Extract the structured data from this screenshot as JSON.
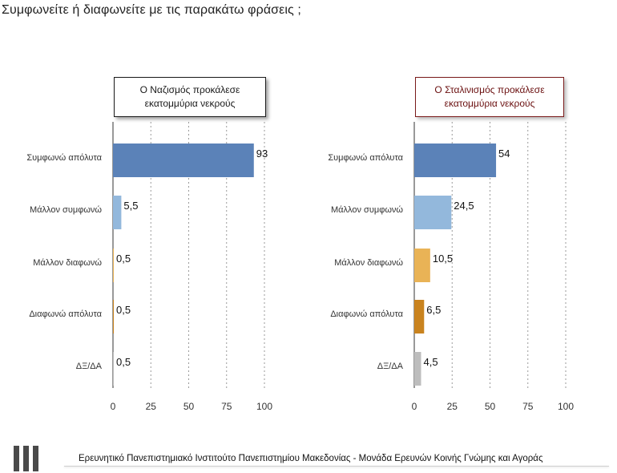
{
  "question": "Συμφωνείτε ή διαφωνείτε με τις παρακάτω φράσεις ;",
  "footer": "Ερευνητικό Πανεπιστημιακό Ινστιτούτο Πανεπιστημίου Μακεδονίας - Μονάδα Ερευνών Κοινής Γνώμης και Αγοράς",
  "chart_data": [
    {
      "type": "bar",
      "orientation": "horizontal",
      "title": "Ο Ναζισμός προκάλεσε εκατομμύρια νεκρούς",
      "categories": [
        "Συμφωνώ απόλυτα",
        "Μάλλον συμφωνώ",
        "Μάλλον διαφωνώ",
        "Διαφωνώ απόλυτα",
        "ΔΞ/ΔΑ"
      ],
      "values": [
        93,
        5.5,
        0.5,
        0.5,
        0.5
      ],
      "value_labels": [
        "93",
        "5,5",
        "0,5",
        "0,5",
        "0,5"
      ],
      "colors": [
        "#5b82b8",
        "#93b8dc",
        "#e9b356",
        "#c9831f",
        "#bdbdbd"
      ],
      "xlim": [
        0,
        100
      ],
      "xticks": [
        0,
        25,
        50,
        75,
        100
      ],
      "grid": "vertical dashed"
    },
    {
      "type": "bar",
      "orientation": "horizontal",
      "title": "Ο Σταλινισμός προκάλεσε εκατομμύρια νεκρούς",
      "categories": [
        "Συμφωνώ απόλυτα",
        "Μάλλον συμφωνώ",
        "Μάλλον διαφωνώ",
        "Διαφωνώ απόλυτα",
        "ΔΞ/ΔΑ"
      ],
      "values": [
        54,
        24.5,
        10.5,
        6.5,
        4.5
      ],
      "value_labels": [
        "54",
        "24,5",
        "10,5",
        "6,5",
        "4,5"
      ],
      "colors": [
        "#5b82b8",
        "#93b8dc",
        "#e9b356",
        "#c9831f",
        "#bdbdbd"
      ],
      "xlim": [
        0,
        100
      ],
      "xticks": [
        0,
        25,
        50,
        75,
        100
      ],
      "grid": "vertical dashed"
    }
  ]
}
